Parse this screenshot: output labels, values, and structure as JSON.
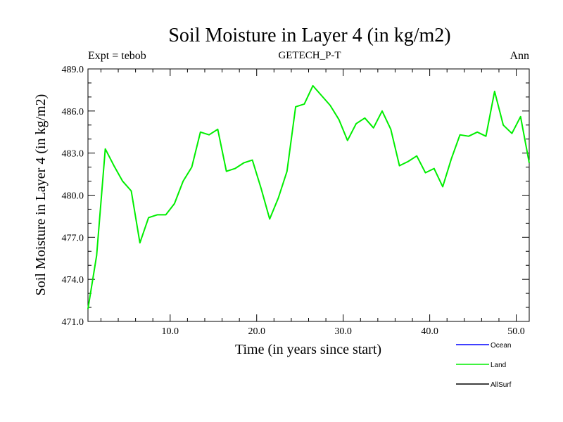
{
  "chart_data": {
    "type": "line",
    "title": "Soil Moisture in Layer 4 (in kg/m2)",
    "subtitle": "GETECH_P-T",
    "left_label": "Expt = tebob",
    "right_label": "Ann",
    "xlabel": "Time (in years since start)",
    "ylabel": "Soil Moisture in Layer 4 (in kg/m2)",
    "xlim": [
      0.5,
      51.5
    ],
    "ylim": [
      471.0,
      489.0
    ],
    "xticks": [
      10,
      20,
      30,
      40,
      50
    ],
    "xtick_labels": [
      "10.0",
      "20.0",
      "30.0",
      "40.0",
      "50.0"
    ],
    "yticks": [
      471,
      474,
      477,
      480,
      483,
      486,
      489
    ],
    "ytick_labels": [
      "471.0",
      "474.0",
      "477.0",
      "480.0",
      "483.0",
      "486.0",
      "489.0"
    ],
    "legend_position": "bottom-right",
    "series": [
      {
        "name": "Ocean",
        "color": "#0000ff",
        "x": [],
        "values": []
      },
      {
        "name": "Land",
        "color": "#00ee00",
        "x": [
          0.5,
          1.5,
          2.5,
          3.5,
          4.5,
          5.5,
          6.5,
          7.5,
          8.5,
          9.5,
          10.5,
          11.5,
          12.5,
          13.5,
          14.5,
          15.5,
          16.5,
          17.5,
          18.5,
          19.5,
          20.5,
          21.5,
          22.5,
          23.5,
          24.5,
          25.5,
          26.5,
          27.5,
          28.5,
          29.5,
          30.5,
          31.5,
          32.5,
          33.5,
          34.5,
          35.5,
          36.5,
          37.5,
          38.5,
          39.5,
          40.5,
          41.5,
          42.5,
          43.5,
          44.5,
          45.5,
          46.5,
          47.5,
          48.5,
          49.5,
          50.5,
          51.5
        ],
        "values": [
          471.9,
          475.7,
          483.3,
          482.1,
          481.0,
          480.3,
          476.6,
          478.4,
          478.6,
          478.6,
          479.4,
          481.0,
          482.0,
          484.5,
          484.3,
          484.7,
          481.7,
          481.9,
          482.3,
          482.5,
          480.5,
          478.3,
          479.8,
          481.7,
          486.3,
          486.5,
          487.8,
          487.1,
          486.4,
          485.4,
          483.9,
          485.1,
          485.5,
          484.8,
          486.0,
          484.7,
          482.1,
          482.4,
          482.8,
          481.6,
          481.9,
          480.6,
          482.6,
          484.3,
          484.2,
          484.5,
          484.2,
          487.4,
          485.0,
          484.4,
          485.6,
          482.3
        ]
      },
      {
        "name": "AllSurf",
        "color": "#000000",
        "x": [],
        "values": []
      }
    ]
  }
}
